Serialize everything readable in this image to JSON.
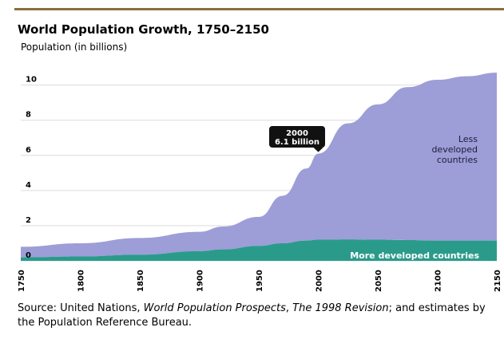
{
  "chart_data": {
    "type": "area",
    "stacked": true,
    "title": "World Population Growth, 1750–2150",
    "ylabel": "Population (in billions)",
    "xlabel": "",
    "xlim": [
      1750,
      2150
    ],
    "ylim": [
      0,
      11
    ],
    "y_ticks": [
      "0",
      "2",
      "4",
      "6",
      "8",
      "10"
    ],
    "x_ticks": [
      "1750",
      "1800",
      "1850",
      "1900",
      "1950",
      "2000",
      "2050",
      "2100",
      "2150"
    ],
    "x": [
      1750,
      1800,
      1850,
      1900,
      1920,
      1950,
      1970,
      1990,
      2000,
      2025,
      2050,
      2075,
      2100,
      2125,
      2150
    ],
    "series": [
      {
        "name": "More developed countries",
        "color": "#2a9b8b",
        "values": [
          0.2,
          0.25,
          0.35,
          0.55,
          0.65,
          0.85,
          1.0,
          1.15,
          1.2,
          1.22,
          1.2,
          1.18,
          1.15,
          1.15,
          1.15
        ]
      },
      {
        "name": "Less developed countries",
        "color": "#9d9dd8",
        "values": [
          0.6,
          0.75,
          0.95,
          1.1,
          1.3,
          1.65,
          2.7,
          4.1,
          4.9,
          6.6,
          7.7,
          8.7,
          9.15,
          9.35,
          9.55
        ]
      }
    ],
    "annotation": {
      "year": "2000",
      "value": "6.1 billion",
      "x": 2000,
      "y": 6.1
    },
    "grid": true,
    "legend": "inline labels"
  },
  "labels": {
    "less_developed": [
      "Less",
      "developed",
      "countries"
    ],
    "more_developed": "More developed countries"
  },
  "source": {
    "prefix": "Source: United Nations, ",
    "work": "World Population Prospects",
    "sep": ", ",
    "revision": "The 1998 Revision",
    "suffix": "; and estimates by the Population Reference Bureau."
  },
  "colors": {
    "rule": "#8b6d3f",
    "grid": "#dcdcdc",
    "axis": "#000000"
  }
}
